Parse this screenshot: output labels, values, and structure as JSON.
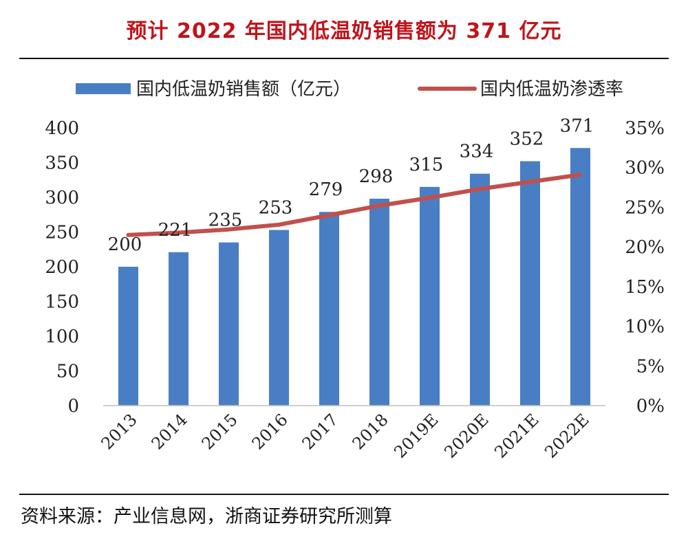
{
  "title": "预计 2022 年国内低温奶销售额为 371 亿元",
  "colors": {
    "title": "#c0141a",
    "bar": "#4a7ec4",
    "line": "#c0504d"
  },
  "source": "资料来源：产业信息网，浙商证券研究所测算",
  "chart_data": {
    "type": "bar+line",
    "categories": [
      "2013",
      "2014",
      "2015",
      "2016",
      "2017",
      "2018",
      "2019E",
      "2020E",
      "2021E",
      "2022E"
    ],
    "series": [
      {
        "name": "国内低温奶销售额（亿元）",
        "type": "bar",
        "axis": "left",
        "values": [
          200,
          221,
          235,
          253,
          279,
          298,
          315,
          334,
          352,
          371
        ],
        "labels": [
          "200",
          "221",
          "235",
          "253",
          "279",
          "298",
          "315",
          "334",
          "352",
          "371"
        ]
      },
      {
        "name": "国内低温奶渗透率",
        "type": "line",
        "axis": "right",
        "values": [
          21.5,
          21.8,
          22.2,
          22.8,
          24.0,
          25.2,
          26.2,
          27.3,
          28.2,
          29.1
        ]
      }
    ],
    "y_left": {
      "min": 0,
      "max": 400,
      "ticks": [
        "0",
        "50",
        "100",
        "150",
        "200",
        "250",
        "300",
        "350",
        "400"
      ]
    },
    "y_right": {
      "min": 0,
      "max": 35,
      "ticks": [
        "0%",
        "5%",
        "10%",
        "15%",
        "20%",
        "25%",
        "30%",
        "35%"
      ]
    },
    "legend": {
      "position": "top"
    }
  }
}
